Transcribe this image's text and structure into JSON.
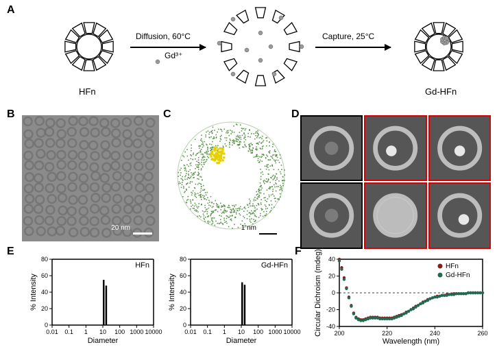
{
  "panelA": {
    "left_label": "HFn",
    "right_label": "Gd-HFn",
    "ion_label": "Gd³⁺",
    "arrow1_top": "Diffusion, 60°C",
    "arrow2_top": "Capture, 25°C",
    "hfn_circle": {
      "stroke": "#000000",
      "fill": "#ffffff"
    },
    "ion_fill": "#9a9a9a"
  },
  "panelB": {
    "scale_text": "20 nm",
    "bg": "#8b8b8b",
    "dot_fill": "#6e6e6e"
  },
  "panelC": {
    "scale_text": "1 nm",
    "shell_color": "#4a8a3a",
    "cluster_color": "#e6d000",
    "bg": "#ffffff"
  },
  "panelD": {
    "cells": [
      {
        "red": false
      },
      {
        "red": true
      },
      {
        "red": true
      },
      {
        "red": false
      },
      {
        "red": true
      },
      {
        "red": true
      }
    ],
    "bg": "#565656",
    "ring_stroke": "#cfcfcf"
  },
  "panelE": {
    "ylabel": "% Intensity",
    "xlabel": "Diameter",
    "title_left": "HFn",
    "title_right": "Gd-HFn",
    "yticks": [
      0,
      20,
      40,
      60,
      80
    ],
    "xticks": [
      "0.01",
      "0.1",
      "1",
      "10",
      "100",
      "1000",
      "10000"
    ],
    "ylim": [
      0,
      80
    ],
    "xlim_log": [
      -2,
      4
    ],
    "bar_color": "#000000",
    "left_bars": [
      {
        "x_log": 1.05,
        "y": 55
      },
      {
        "x_log": 1.2,
        "y": 48
      }
    ],
    "right_bars": [
      {
        "x_log": 1.05,
        "y": 52
      },
      {
        "x_log": 1.2,
        "y": 49
      }
    ],
    "bar_width_log": 0.1,
    "axis_color": "#000000",
    "tick_fontsize": 9,
    "label_fontsize": 11
  },
  "panelF": {
    "ylabel": "Circular Dichroism (mdeg)",
    "xlabel": "Wavelength (nm)",
    "legend": [
      {
        "name": "HFn",
        "color": "#8b1a1a"
      },
      {
        "name": "Gd-HFn",
        "color": "#1f6b52"
      }
    ],
    "xlim": [
      200,
      260
    ],
    "ylim": [
      -40,
      40
    ],
    "xticks": [
      200,
      220,
      240,
      260
    ],
    "yticks": [
      -40,
      -20,
      0,
      20,
      40
    ],
    "marker_radius": 2.2,
    "axis_color": "#000000",
    "zero_line_dash": "3,3",
    "series": {
      "x": [
        200,
        201,
        202,
        203,
        204,
        205,
        206,
        207,
        208,
        209,
        210,
        211,
        212,
        213,
        214,
        215,
        216,
        217,
        218,
        219,
        220,
        221,
        222,
        223,
        224,
        225,
        226,
        227,
        228,
        229,
        230,
        231,
        232,
        233,
        234,
        235,
        236,
        237,
        238,
        239,
        240,
        241,
        242,
        243,
        244,
        245,
        246,
        247,
        248,
        249,
        250,
        251,
        252,
        253,
        254,
        255,
        256,
        257,
        258,
        259,
        260
      ],
      "hfn": [
        40,
        30,
        18,
        6,
        -5,
        -15,
        -24,
        -29,
        -31,
        -32,
        -32,
        -31,
        -30,
        -29,
        -29,
        -29,
        -29,
        -30,
        -30,
        -30,
        -30,
        -30,
        -30,
        -29,
        -28,
        -27,
        -26,
        -25,
        -23,
        -22,
        -20,
        -18,
        -16,
        -15,
        -13,
        -11,
        -10,
        -8,
        -7,
        -6,
        -5,
        -4,
        -4,
        -3,
        -3,
        -2,
        -2,
        -2,
        -1,
        -1,
        -1,
        -1,
        -1,
        -1,
        0,
        0,
        0,
        0,
        0,
        0,
        0
      ],
      "gdhfn": [
        38,
        28,
        16,
        5,
        -6,
        -16,
        -25,
        -30,
        -32,
        -33,
        -33,
        -32,
        -31,
        -30,
        -30,
        -30,
        -30,
        -31,
        -31,
        -31,
        -31,
        -31,
        -31,
        -30,
        -29,
        -28,
        -27,
        -25,
        -24,
        -22,
        -20,
        -19,
        -17,
        -15,
        -13,
        -12,
        -10,
        -9,
        -7,
        -6,
        -5,
        -5,
        -4,
        -3,
        -3,
        -3,
        -2,
        -2,
        -2,
        -1,
        -1,
        -1,
        -1,
        -1,
        0,
        0,
        0,
        0,
        0,
        0,
        0
      ]
    },
    "tick_fontsize": 9,
    "label_fontsize": 11
  }
}
